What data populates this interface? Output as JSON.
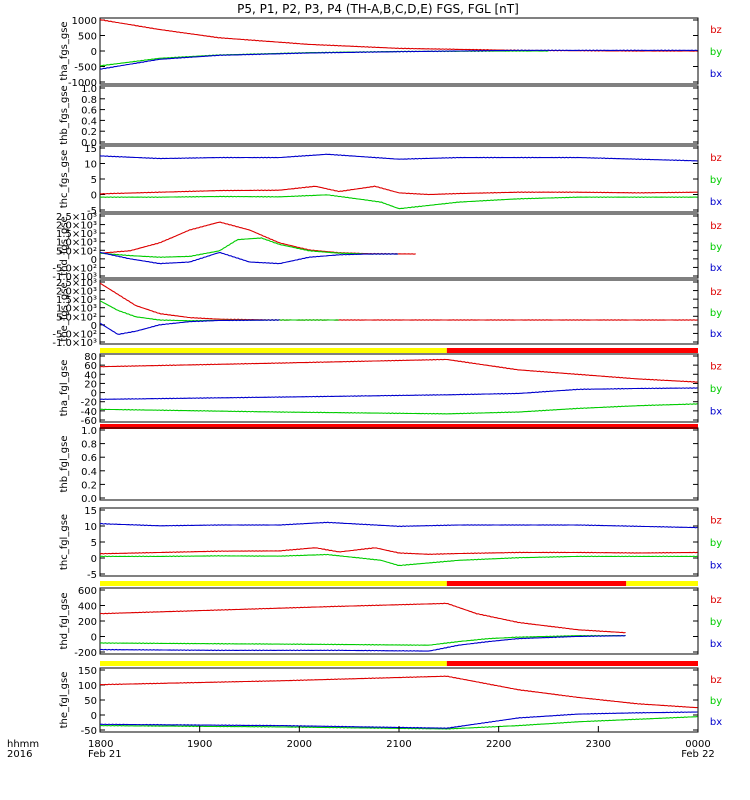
{
  "title": "P5, P1, P2, P3, P4 (TH-A,B,C,D,E) FGS, FGL [nT]",
  "colors": {
    "bz": "#dd0000",
    "by": "#00cc00",
    "bx": "#0000cc",
    "bar_yellow": "#ffff00",
    "bar_red": "#ff0000"
  },
  "time_axis": {
    "ticks": [
      "1800",
      "1900",
      "2000",
      "2100",
      "2200",
      "2300",
      "0000"
    ],
    "corner_label": "hhmm",
    "corner_year": "2016",
    "start_date": "Feb 21",
    "end_date": "Feb 22"
  },
  "legend": [
    "bz",
    "by",
    "bx"
  ],
  "chart_data": [
    {
      "type": "line",
      "ylabel": "tha_fgs_gse",
      "ylim": [
        -1000,
        1000
      ],
      "ticks": [
        "1000",
        "500",
        "0",
        "-500",
        "-1000"
      ],
      "series": [
        {
          "name": "bz",
          "t": [
            0,
            0.1,
            0.2,
            0.35,
            0.5,
            0.7,
            0.9,
            1
          ],
          "v": [
            950,
            650,
            400,
            200,
            80,
            20,
            0,
            0
          ],
          "until": 1
        },
        {
          "name": "by",
          "t": [
            0,
            0.1,
            0.2,
            0.35,
            0.5,
            0.7,
            1
          ],
          "v": [
            -450,
            -220,
            -120,
            -50,
            -15,
            0,
            0
          ],
          "until": 0.75
        },
        {
          "name": "bx",
          "t": [
            0,
            0.1,
            0.2,
            0.35,
            0.5,
            0.7,
            1
          ],
          "v": [
            -550,
            -250,
            -130,
            -60,
            -20,
            20,
            20
          ],
          "until": 1
        }
      ]
    },
    {
      "type": "line",
      "ylabel": "thb_fgs_gse",
      "ylim": [
        0,
        1
      ],
      "ticks": [
        "1.0",
        "0.8",
        "0.6",
        "0.4",
        "0.2",
        "0.0"
      ],
      "series": []
    },
    {
      "type": "line",
      "ylabel": "thc_fgs_gse",
      "ylim": [
        -5,
        15
      ],
      "ticks": [
        "15",
        "10",
        "5",
        "0",
        "-5"
      ],
      "series": [
        {
          "name": "bz",
          "t": [
            0,
            0.1,
            0.2,
            0.3,
            0.36,
            0.4,
            0.46,
            0.5,
            0.55,
            0.6,
            0.7,
            0.8,
            0.9,
            1
          ],
          "v": [
            0.5,
            1,
            1.5,
            1.6,
            2.8,
            1.2,
            2.8,
            0.8,
            0.3,
            0.6,
            1,
            1,
            0.8,
            1
          ],
          "until": 1
        },
        {
          "name": "by",
          "t": [
            0,
            0.1,
            0.2,
            0.3,
            0.38,
            0.43,
            0.47,
            0.5,
            0.55,
            0.6,
            0.7,
            0.8,
            0.9,
            1
          ],
          "v": [
            -0.5,
            -0.5,
            -0.3,
            -0.4,
            0.2,
            -1,
            -2,
            -4,
            -3,
            -2,
            -1,
            -0.5,
            -0.5,
            -0.5
          ],
          "until": 1
        },
        {
          "name": "bx",
          "t": [
            0,
            0.1,
            0.2,
            0.3,
            0.38,
            0.5,
            0.6,
            0.7,
            0.8,
            0.9,
            1
          ],
          "v": [
            12,
            11.2,
            11.5,
            11.5,
            12.5,
            11,
            11.5,
            11.5,
            11.5,
            11,
            10.5
          ],
          "until": 1
        }
      ]
    },
    {
      "type": "line",
      "ylabel": "thd_fgs_gse",
      "ylim": [
        -1500,
        2500
      ],
      "ticks": [
        "2.5×10³",
        "2.0×10³",
        "1.5×10³",
        "1.0×10³",
        "5.0×10²",
        "0",
        "-5.0×10²",
        "-1.0×10³"
      ],
      "series": [
        {
          "name": "bz",
          "t": [
            0,
            0.05,
            0.1,
            0.15,
            0.2,
            0.25,
            0.3,
            0.35,
            0.4,
            0.45,
            0.5,
            0.53
          ],
          "v": [
            50,
            200,
            700,
            1500,
            2000,
            1500,
            700,
            250,
            80,
            20,
            10,
            0
          ],
          "until": 0.53
        },
        {
          "name": "by",
          "t": [
            0,
            0.05,
            0.1,
            0.15,
            0.2,
            0.23,
            0.27,
            0.3,
            0.35,
            0.4,
            0.45,
            0.5
          ],
          "v": [
            50,
            -100,
            -200,
            -150,
            200,
            900,
            1000,
            600,
            200,
            50,
            0,
            0
          ],
          "until": 0.5
        },
        {
          "name": "bx",
          "t": [
            0,
            0.05,
            0.1,
            0.15,
            0.2,
            0.25,
            0.3,
            0.35,
            0.4,
            0.45,
            0.5
          ],
          "v": [
            100,
            -300,
            -600,
            -500,
            100,
            -500,
            -600,
            -200,
            -50,
            0,
            0
          ],
          "until": 0.5
        }
      ]
    },
    {
      "type": "line",
      "ylabel": "the_fgs_gse",
      "ylim": [
        -1500,
        2500
      ],
      "ticks": [
        "2.5×10³",
        "2.0×10³",
        "1.5×10³",
        "1.0×10³",
        "5.0×10²",
        "0",
        "-5.0×10²",
        "-1.0×10³"
      ],
      "series": [
        {
          "name": "bz",
          "t": [
            0,
            0.03,
            0.06,
            0.1,
            0.15,
            0.2,
            0.3,
            1
          ],
          "v": [
            2300,
            1600,
            900,
            400,
            150,
            50,
            0,
            0
          ],
          "until": 1
        },
        {
          "name": "by",
          "t": [
            0,
            0.03,
            0.06,
            0.1,
            0.15,
            0.2,
            0.3,
            0.4
          ],
          "v": [
            1200,
            600,
            200,
            0,
            -50,
            -20,
            0,
            0
          ],
          "until": 0.4
        },
        {
          "name": "bx",
          "t": [
            0,
            0.03,
            0.06,
            0.1,
            0.15,
            0.2,
            0.3
          ],
          "v": [
            -200,
            -900,
            -700,
            -300,
            -100,
            -30,
            0
          ],
          "until": 0.3
        }
      ]
    },
    {
      "type": "line",
      "ylabel": "tha_fgl_gse",
      "ylim": [
        -60,
        90
      ],
      "ticks": [
        "80",
        "60",
        "40",
        "20",
        "0",
        "-20",
        "-40",
        "-60"
      ],
      "bar": [
        {
          "from": 0,
          "to": 0.58,
          "c": "bar_yellow"
        },
        {
          "from": 0.58,
          "to": 1,
          "c": "bar_red"
        }
      ],
      "series": [
        {
          "name": "bz",
          "t": [
            0,
            0.3,
            0.58,
            0.7,
            0.8,
            0.9,
            1
          ],
          "v": [
            62,
            70,
            78,
            55,
            45,
            35,
            28
          ],
          "until": 1
        },
        {
          "name": "by",
          "t": [
            0,
            0.3,
            0.58,
            0.7,
            0.8,
            0.9,
            1
          ],
          "v": [
            -32,
            -38,
            -42,
            -38,
            -30,
            -24,
            -20
          ],
          "until": 1
        },
        {
          "name": "bx",
          "t": [
            0,
            0.3,
            0.58,
            0.7,
            0.8,
            0.9,
            1
          ],
          "v": [
            -10,
            -5,
            0,
            3,
            12,
            14,
            15
          ],
          "until": 1
        }
      ]
    },
    {
      "type": "line",
      "ylabel": "thb_fgl_gse",
      "ylim": [
        0,
        1
      ],
      "ticks": [
        "1.0",
        "0.8",
        "0.6",
        "0.4",
        "0.2",
        "0.0"
      ],
      "bar": [
        {
          "from": 0,
          "to": 1,
          "c": "bar_red"
        }
      ],
      "series": []
    },
    {
      "type": "line",
      "ylabel": "thc_fgl_gse",
      "ylim": [
        -8,
        18
      ],
      "ticks": [
        "15",
        "10",
        "5",
        "0",
        "-5"
      ],
      "series": [
        {
          "name": "bz",
          "t": [
            0,
            0.1,
            0.2,
            0.3,
            0.36,
            0.4,
            0.46,
            0.5,
            0.55,
            0.6,
            0.7,
            0.8,
            0.9,
            1
          ],
          "v": [
            0.5,
            1,
            1.5,
            1.6,
            2.8,
            1.2,
            2.8,
            0.8,
            0.3,
            0.6,
            1,
            1,
            0.8,
            1
          ],
          "until": 1
        },
        {
          "name": "by",
          "t": [
            0,
            0.1,
            0.2,
            0.3,
            0.38,
            0.43,
            0.47,
            0.5,
            0.55,
            0.6,
            0.7,
            0.8,
            0.9,
            1
          ],
          "v": [
            -0.5,
            -0.5,
            -0.3,
            -0.4,
            0.2,
            -1,
            -2,
            -4,
            -3,
            -2,
            -1,
            -0.5,
            -0.5,
            -0.5
          ],
          "until": 1
        },
        {
          "name": "bx",
          "t": [
            0,
            0.1,
            0.2,
            0.3,
            0.38,
            0.5,
            0.6,
            0.7,
            0.8,
            0.9,
            1
          ],
          "v": [
            12,
            11.2,
            11.5,
            11.5,
            12.5,
            11,
            11.5,
            11.5,
            11.5,
            11,
            10.5
          ],
          "until": 1
        }
      ]
    },
    {
      "type": "line",
      "ylabel": "thd_fgl_gse",
      "ylim": [
        -250,
        650
      ],
      "ticks": [
        "600",
        "400",
        "200",
        "0",
        "-200"
      ],
      "bar": [
        {
          "from": 0,
          "to": 0.58,
          "c": "bar_yellow"
        },
        {
          "from": 0.58,
          "to": 0.88,
          "c": "bar_red"
        },
        {
          "from": 0.88,
          "to": 1,
          "c": "bar_yellow"
        }
      ],
      "series": [
        {
          "name": "bz",
          "t": [
            0,
            0.2,
            0.4,
            0.58,
            0.63,
            0.7,
            0.8,
            0.88
          ],
          "v": [
            300,
            350,
            400,
            440,
            300,
            180,
            80,
            40
          ],
          "until": 0.88
        },
        {
          "name": "by",
          "t": [
            0,
            0.2,
            0.4,
            0.55,
            0.6,
            0.65,
            0.7,
            0.8,
            0.88
          ],
          "v": [
            -100,
            -110,
            -120,
            -130,
            -80,
            -40,
            -20,
            0,
            0
          ],
          "until": 0.88
        },
        {
          "name": "bx",
          "t": [
            0,
            0.2,
            0.4,
            0.55,
            0.6,
            0.65,
            0.7,
            0.8,
            0.88
          ],
          "v": [
            -190,
            -200,
            -200,
            -210,
            -130,
            -80,
            -40,
            -10,
            0
          ],
          "until": 0.88
        }
      ]
    },
    {
      "type": "line",
      "ylabel": "the_fgl_gse",
      "ylim": [
        -70,
        180
      ],
      "ticks": [
        "150",
        "100",
        "50",
        "0",
        "-50"
      ],
      "bar": [
        {
          "from": 0,
          "to": 0.58,
          "c": "bar_yellow"
        },
        {
          "from": 0.58,
          "to": 1,
          "c": "bar_red"
        }
      ],
      "series": [
        {
          "name": "bz",
          "t": [
            0,
            0.3,
            0.58,
            0.7,
            0.8,
            0.9,
            1
          ],
          "v": [
            115,
            130,
            148,
            95,
            65,
            40,
            25
          ],
          "until": 1
        },
        {
          "name": "by",
          "t": [
            0,
            0.3,
            0.58,
            0.7,
            0.8,
            0.9,
            1
          ],
          "v": [
            -45,
            -50,
            -58,
            -45,
            -30,
            -20,
            -10
          ],
          "until": 1
        },
        {
          "name": "bx",
          "t": [
            0,
            0.3,
            0.58,
            0.7,
            0.8,
            0.9,
            1
          ],
          "v": [
            -40,
            -45,
            -55,
            -15,
            0,
            5,
            8
          ],
          "until": 1
        }
      ]
    }
  ]
}
